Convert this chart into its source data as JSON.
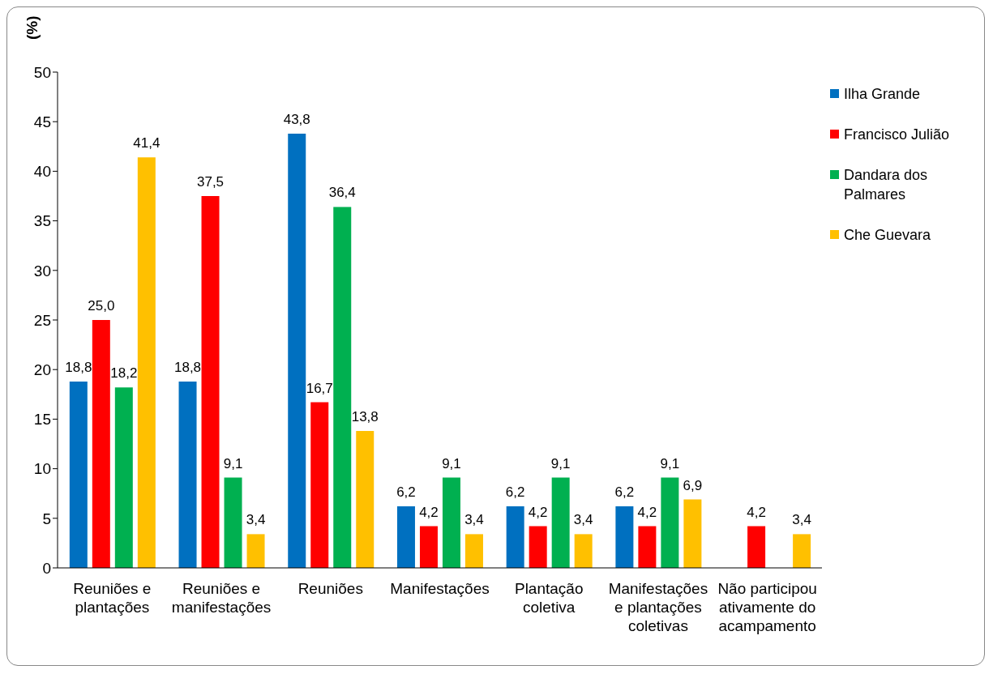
{
  "chart_data": {
    "type": "bar",
    "ylabel": "(%)",
    "categories": [
      "Reuniões e plantações",
      "Reuniões e manifestações",
      "Reuniões",
      "Manifestações",
      "Plantação coletiva",
      "Manifestações e plantações coletivas",
      "Não participou ativamente do acampamento"
    ],
    "series": [
      {
        "name": "Ilha Grande",
        "color": "#0070c0",
        "values": [
          18.8,
          18.8,
          43.8,
          6.2,
          6.2,
          6.2,
          null
        ],
        "value_labels": [
          "18,8",
          "18,8",
          "43,8",
          "6,2",
          "6,2",
          "6,2",
          null
        ]
      },
      {
        "name": "Francisco Julião",
        "color": "#ff0000",
        "values": [
          25.0,
          37.5,
          16.7,
          4.2,
          4.2,
          4.2,
          4.2
        ],
        "value_labels": [
          "25,0",
          "37,5",
          "16,7",
          "4,2",
          "4,2",
          "4,2",
          "4,2"
        ]
      },
      {
        "name": "Dandara dos Palmares",
        "color": "#00b050",
        "values": [
          18.2,
          9.1,
          36.4,
          9.1,
          9.1,
          9.1,
          null
        ],
        "value_labels": [
          "18,2",
          "9,1",
          "36,4",
          "9,1",
          "9,1",
          "9,1",
          null
        ]
      },
      {
        "name": "Che Guevara",
        "color": "#ffc000",
        "values": [
          41.4,
          3.4,
          13.8,
          3.4,
          3.4,
          6.9,
          3.4
        ],
        "value_labels": [
          "41,4",
          "3,4",
          "13,8",
          "3,4",
          "3,4",
          "6,9",
          "3,4"
        ]
      }
    ],
    "ylim": [
      0,
      50
    ],
    "yticks": [
      0,
      5,
      10,
      15,
      20,
      25,
      30,
      35,
      40,
      45,
      50
    ],
    "legend": "top right"
  }
}
